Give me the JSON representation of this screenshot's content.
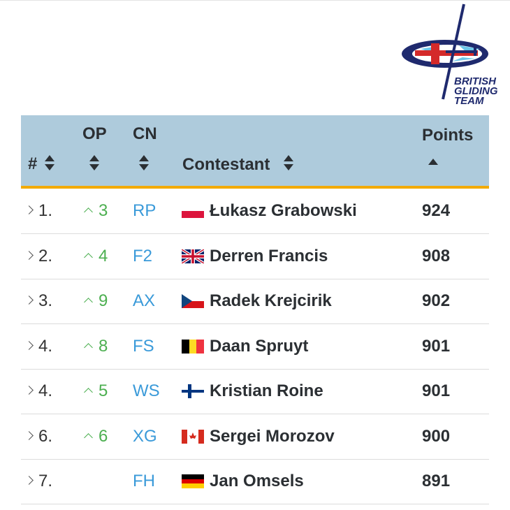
{
  "logo": {
    "text_lines": [
      "BRITISH",
      "GLIDING",
      "TEAM"
    ]
  },
  "table": {
    "headers": {
      "rank": "#",
      "op": "OP",
      "cn": "CN",
      "contestant": "Contestant",
      "points": "Points"
    },
    "sort": {
      "column": "Points",
      "direction": "ascending"
    },
    "colors": {
      "header_bg": "#aecbdc",
      "header_border": "#f2aa00",
      "op_up": "#4caf50",
      "cn": "#3a9ad9"
    },
    "rows": [
      {
        "rank": "1.",
        "op": "3",
        "cn": "RP",
        "flag": "poland",
        "name": "Łukasz Grabowski",
        "points": "924"
      },
      {
        "rank": "2.",
        "op": "4",
        "cn": "F2",
        "flag": "united-kingdom",
        "name": "Derren Francis",
        "points": "908"
      },
      {
        "rank": "3.",
        "op": "9",
        "cn": "AX",
        "flag": "czech-republic",
        "name": "Radek Krejcirik",
        "points": "902"
      },
      {
        "rank": "4.",
        "op": "8",
        "cn": "FS",
        "flag": "belgium",
        "name": "Daan Spruyt",
        "points": "901"
      },
      {
        "rank": "4.",
        "op": "5",
        "cn": "WS",
        "flag": "finland",
        "name": "Kristian Roine",
        "points": "901"
      },
      {
        "rank": "6.",
        "op": "6",
        "cn": "XG",
        "flag": "canada",
        "name": "Sergei Morozov",
        "points": "900"
      },
      {
        "rank": "7.",
        "op": "",
        "cn": "FH",
        "flag": "germany",
        "name": "Jan Omsels",
        "points": "891"
      }
    ]
  }
}
